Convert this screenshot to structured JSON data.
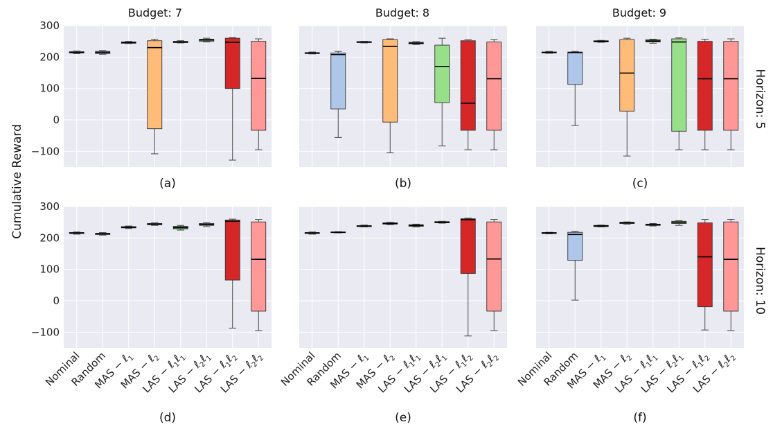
{
  "figure": {
    "ylabel": "Cumulative Reward",
    "column_titles": [
      "Budget: 7",
      "Budget: 8",
      "Budget: 9"
    ],
    "row_labels": [
      "Horizon: 5",
      "Horizon: 10"
    ],
    "panel_labels": [
      "(a)",
      "(b)",
      "(c)",
      "(d)",
      "(e)",
      "(f)"
    ],
    "methods": [
      "Nominal",
      "Random",
      "MAS-ℓ1",
      "MAS-ℓ2",
      "LAS-ℓ1ℓ1",
      "LAS-ℓ2ℓ1",
      "LAS-ℓ1ℓ2",
      "LAS-ℓ2ℓ2"
    ],
    "method_tick_parts": [
      {
        "pre": "Nominal"
      },
      {
        "pre": "Random"
      },
      {
        "pre": "MAS − ",
        "ell": [
          "1"
        ]
      },
      {
        "pre": "MAS − ",
        "ell": [
          "2"
        ]
      },
      {
        "pre": "LAS − ",
        "ell": [
          "1",
          "1"
        ]
      },
      {
        "pre": "LAS − ",
        "ell": [
          "2",
          "1"
        ]
      },
      {
        "pre": "LAS − ",
        "ell": [
          "1",
          "2"
        ]
      },
      {
        "pre": "LAS − ",
        "ell": [
          "2",
          "2"
        ]
      }
    ],
    "colors": [
      "#e08a7a",
      "#aec7e8",
      "#ff7f0e",
      "#ffbb78",
      "#2ca02c",
      "#98df8a",
      "#d62728",
      "#ff9896"
    ],
    "y_ticks": [
      -100,
      0,
      100,
      200,
      300
    ]
  },
  "chart_data": [
    {
      "type": "box",
      "panel": "(a)",
      "title": "Budget: 7",
      "row": "Horizon: 5",
      "ylabel": "Cumulative Reward",
      "ylim": [
        -150,
        300
      ],
      "categories": [
        "Nominal",
        "Random",
        "MAS-ℓ1",
        "MAS-ℓ2",
        "LAS-ℓ1ℓ1",
        "LAS-ℓ2ℓ1",
        "LAS-ℓ1ℓ2",
        "LAS-ℓ2ℓ2"
      ],
      "boxes": [
        {
          "min": 211,
          "q1": 213,
          "median": 215,
          "q3": 217,
          "max": 219
        },
        {
          "min": 209,
          "q1": 211,
          "median": 215,
          "q3": 218,
          "max": 221
        },
        {
          "min": 243,
          "q1": 244,
          "median": 246,
          "q3": 248,
          "max": 250
        },
        {
          "min": -108,
          "q1": -28,
          "median": 230,
          "q3": 252,
          "max": 257
        },
        {
          "min": 245,
          "q1": 246,
          "median": 248,
          "q3": 250,
          "max": 252
        },
        {
          "min": 248,
          "q1": 250,
          "median": 254,
          "q3": 257,
          "max": 260
        },
        {
          "min": -128,
          "q1": 100,
          "median": 247,
          "q3": 260,
          "max": 262
        },
        {
          "min": -95,
          "q1": -33,
          "median": 132,
          "q3": 250,
          "max": 258
        }
      ]
    },
    {
      "type": "box",
      "panel": "(b)",
      "title": "Budget: 8",
      "row": "Horizon: 5",
      "ylim": [
        -150,
        300
      ],
      "categories": [
        "Nominal",
        "Random",
        "MAS-ℓ1",
        "MAS-ℓ2",
        "LAS-ℓ1ℓ1",
        "LAS-ℓ2ℓ1",
        "LAS-ℓ1ℓ2",
        "LAS-ℓ2ℓ2"
      ],
      "boxes": [
        {
          "min": 210,
          "q1": 211,
          "median": 213,
          "q3": 214,
          "max": 216
        },
        {
          "min": -56,
          "q1": 35,
          "median": 208,
          "q3": 213,
          "max": 218
        },
        {
          "min": 245,
          "q1": 246,
          "median": 248,
          "q3": 249,
          "max": 250
        },
        {
          "min": -105,
          "q1": -7,
          "median": 234,
          "q3": 256,
          "max": 258
        },
        {
          "min": 240,
          "q1": 242,
          "median": 244,
          "q3": 247,
          "max": 249
        },
        {
          "min": -83,
          "q1": 55,
          "median": 170,
          "q3": 238,
          "max": 260
        },
        {
          "min": -95,
          "q1": -33,
          "median": 53,
          "q3": 252,
          "max": 255
        },
        {
          "min": -95,
          "q1": -33,
          "median": 131,
          "q3": 248,
          "max": 256
        }
      ]
    },
    {
      "type": "box",
      "panel": "(c)",
      "title": "Budget: 9",
      "row": "Horizon: 5",
      "ylim": [
        -150,
        300
      ],
      "categories": [
        "Nominal",
        "Random",
        "MAS-ℓ1",
        "MAS-ℓ2",
        "LAS-ℓ1ℓ1",
        "LAS-ℓ2ℓ1",
        "LAS-ℓ1ℓ2",
        "LAS-ℓ2ℓ2"
      ],
      "boxes": [
        {
          "min": 212,
          "q1": 213,
          "median": 215,
          "q3": 216,
          "max": 218
        },
        {
          "min": -18,
          "q1": 113,
          "median": 214,
          "q3": 216,
          "max": 218
        },
        {
          "min": 247,
          "q1": 248,
          "median": 250,
          "q3": 252,
          "max": 253
        },
        {
          "min": -115,
          "q1": 28,
          "median": 149,
          "q3": 256,
          "max": 260
        },
        {
          "min": 244,
          "q1": 248,
          "median": 251,
          "q3": 255,
          "max": 257
        },
        {
          "min": -95,
          "q1": -36,
          "median": 248,
          "q3": 258,
          "max": 261
        },
        {
          "min": -95,
          "q1": -33,
          "median": 131,
          "q3": 250,
          "max": 257
        },
        {
          "min": -95,
          "q1": -33,
          "median": 131,
          "q3": 250,
          "max": 258
        }
      ]
    },
    {
      "type": "box",
      "panel": "(d)",
      "title": "Budget: 7",
      "row": "Horizon: 10",
      "ylabel": "Cumulative Reward",
      "ylim": [
        -150,
        300
      ],
      "categories": [
        "Nominal",
        "Random",
        "MAS-ℓ1",
        "MAS-ℓ2",
        "LAS-ℓ1ℓ1",
        "LAS-ℓ2ℓ1",
        "LAS-ℓ1ℓ2",
        "LAS-ℓ2ℓ2"
      ],
      "boxes": [
        {
          "min": 212,
          "q1": 214,
          "median": 216,
          "q3": 217,
          "max": 219
        },
        {
          "min": 209,
          "q1": 211,
          "median": 213,
          "q3": 215,
          "max": 217
        },
        {
          "min": 230,
          "q1": 232,
          "median": 234,
          "q3": 236,
          "max": 238
        },
        {
          "min": 240,
          "q1": 242,
          "median": 244,
          "q3": 246,
          "max": 248
        },
        {
          "min": 225,
          "q1": 229,
          "median": 233,
          "q3": 237,
          "max": 240
        },
        {
          "min": 236,
          "q1": 240,
          "median": 243,
          "q3": 246,
          "max": 249
        },
        {
          "min": -87,
          "q1": 66,
          "median": 253,
          "q3": 257,
          "max": 260
        },
        {
          "min": -95,
          "q1": -33,
          "median": 132,
          "q3": 251,
          "max": 259
        }
      ]
    },
    {
      "type": "box",
      "panel": "(e)",
      "title": "Budget: 8",
      "row": "Horizon: 10",
      "ylim": [
        -150,
        300
      ],
      "categories": [
        "Nominal",
        "Random",
        "MAS-ℓ1",
        "MAS-ℓ2",
        "LAS-ℓ1ℓ1",
        "LAS-ℓ2ℓ1",
        "LAS-ℓ1ℓ2",
        "LAS-ℓ2ℓ2"
      ],
      "boxes": [
        {
          "min": 212,
          "q1": 214,
          "median": 216,
          "q3": 217,
          "max": 219
        },
        {
          "min": 216,
          "q1": 217,
          "median": 218,
          "q3": 219,
          "max": 220
        },
        {
          "min": 235,
          "q1": 236,
          "median": 238,
          "q3": 239,
          "max": 241
        },
        {
          "min": 242,
          "q1": 244,
          "median": 246,
          "q3": 248,
          "max": 250
        },
        {
          "min": 235,
          "q1": 237,
          "median": 240,
          "q3": 242,
          "max": 244
        },
        {
          "min": 247,
          "q1": 248,
          "median": 250,
          "q3": 252,
          "max": 253
        },
        {
          "min": -112,
          "q1": 87,
          "median": 258,
          "q3": 261,
          "max": 263
        },
        {
          "min": -95,
          "q1": -33,
          "median": 133,
          "q3": 251,
          "max": 259
        }
      ]
    },
    {
      "type": "box",
      "panel": "(f)",
      "title": "Budget: 9",
      "row": "Horizon: 10",
      "ylim": [
        -150,
        300
      ],
      "categories": [
        "Nominal",
        "Random",
        "MAS-ℓ1",
        "MAS-ℓ2",
        "LAS-ℓ1ℓ1",
        "LAS-ℓ2ℓ1",
        "LAS-ℓ1ℓ2",
        "LAS-ℓ2ℓ2"
      ],
      "boxes": [
        {
          "min": 213,
          "q1": 214,
          "median": 216,
          "q3": 217,
          "max": 218
        },
        {
          "min": 2,
          "q1": 129,
          "median": 211,
          "q3": 218,
          "max": 221
        },
        {
          "min": 235,
          "q1": 236,
          "median": 238,
          "q3": 240,
          "max": 241
        },
        {
          "min": 244,
          "q1": 246,
          "median": 248,
          "q3": 250,
          "max": 251
        },
        {
          "min": 238,
          "q1": 240,
          "median": 242,
          "q3": 244,
          "max": 246
        },
        {
          "min": 240,
          "q1": 246,
          "median": 250,
          "q3": 253,
          "max": 255
        },
        {
          "min": -93,
          "q1": -19,
          "median": 140,
          "q3": 248,
          "max": 259
        },
        {
          "min": -95,
          "q1": -33,
          "median": 132,
          "q3": 251,
          "max": 259
        }
      ]
    }
  ]
}
